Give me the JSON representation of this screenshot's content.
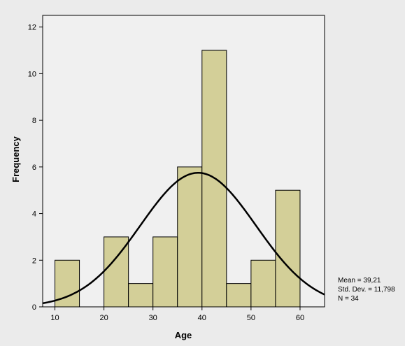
{
  "chart_data": {
    "type": "histogram",
    "xlabel": "Age",
    "ylabel": "Frequency",
    "xlim": [
      7.5,
      65
    ],
    "ylim": [
      0,
      12.5
    ],
    "x_ticks": [
      10,
      20,
      30,
      40,
      50,
      60
    ],
    "y_ticks": [
      0,
      2,
      4,
      6,
      8,
      10,
      12
    ],
    "bins": [
      {
        "from": 10,
        "to": 15,
        "count": 2
      },
      {
        "from": 15,
        "to": 20,
        "count": 0
      },
      {
        "from": 20,
        "to": 25,
        "count": 3
      },
      {
        "from": 25,
        "to": 30,
        "count": 1
      },
      {
        "from": 30,
        "to": 35,
        "count": 3
      },
      {
        "from": 35,
        "to": 40,
        "count": 6
      },
      {
        "from": 40,
        "to": 45,
        "count": 11
      },
      {
        "from": 45,
        "to": 50,
        "count": 1
      },
      {
        "from": 50,
        "to": 55,
        "count": 2
      },
      {
        "from": 55,
        "to": 60,
        "count": 5
      }
    ],
    "normal_curve": {
      "mean": 39.21,
      "std_dev": 11.798,
      "n": 34,
      "bin_width": 5
    },
    "stats": [
      "Mean = 39,21",
      "Std. Dev. = 11,798",
      "N = 34"
    ],
    "grid": false,
    "colors": {
      "bar_fill": "#d3cf98",
      "bar_stroke": "#000000",
      "plot_background": "#f0f0f0",
      "frame_background": "#ebebeb",
      "curve": "#000000"
    }
  }
}
